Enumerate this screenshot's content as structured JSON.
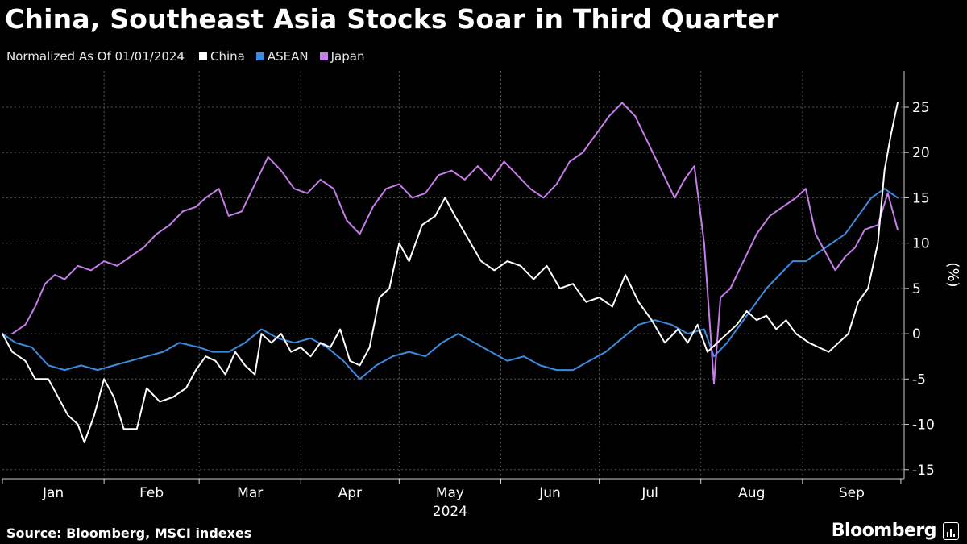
{
  "header": {
    "title": "China, Southeast Asia Stocks Soar in Third Quarter",
    "subtitle": "Normalized As Of 01/01/2024"
  },
  "footer": {
    "source": "Source: Bloomberg, MSCI indexes",
    "brand": "Bloomberg"
  },
  "chart_data": {
    "type": "line",
    "title": "China, Southeast Asia Stocks Soar in Third Quarter",
    "subtitle": "Normalized As Of 01/01/2024",
    "xlabel": "2024",
    "ylabel": "(%)",
    "ylim": [
      -16,
      29
    ],
    "yticks": [
      25,
      20,
      15,
      10,
      5,
      0,
      -5,
      -10,
      -15
    ],
    "ytick_labels": [
      "25",
      "20",
      "15",
      "10",
      "5",
      "0",
      "-5",
      "-10",
      "-15"
    ],
    "xlim": [
      "2024-01-01",
      "2024-10-02"
    ],
    "months": [
      "Jan",
      "Feb",
      "Mar",
      "Apr",
      "May",
      "Jun",
      "Jul",
      "Aug",
      "Sep"
    ],
    "year_label": "2024",
    "grid": true,
    "legend_position": "top-left",
    "series": [
      {
        "name": "China",
        "color": "#ffffff",
        "points": [
          [
            "2024-01-01",
            0
          ],
          [
            "2024-01-04",
            -2
          ],
          [
            "2024-01-08",
            -3
          ],
          [
            "2024-01-11",
            -5
          ],
          [
            "2024-01-15",
            -5
          ],
          [
            "2024-01-18",
            -7
          ],
          [
            "2024-01-21",
            -9
          ],
          [
            "2024-01-24",
            -10
          ],
          [
            "2024-01-26",
            -12
          ],
          [
            "2024-01-29",
            -9
          ],
          [
            "2024-02-01",
            -5
          ],
          [
            "2024-02-04",
            -7
          ],
          [
            "2024-02-07",
            -10.5
          ],
          [
            "2024-02-11",
            -10.5
          ],
          [
            "2024-02-14",
            -6
          ],
          [
            "2024-02-18",
            -7.5
          ],
          [
            "2024-02-22",
            -7
          ],
          [
            "2024-02-26",
            -6
          ],
          [
            "2024-02-29",
            -4
          ],
          [
            "2024-03-03",
            -2.5
          ],
          [
            "2024-03-06",
            -3
          ],
          [
            "2024-03-09",
            -4.5
          ],
          [
            "2024-03-12",
            -2
          ],
          [
            "2024-03-15",
            -3.5
          ],
          [
            "2024-03-18",
            -4.5
          ],
          [
            "2024-03-20",
            0
          ],
          [
            "2024-03-23",
            -1
          ],
          [
            "2024-03-26",
            0
          ],
          [
            "2024-03-29",
            -2
          ],
          [
            "2024-04-01",
            -1.5
          ],
          [
            "2024-04-04",
            -2.5
          ],
          [
            "2024-04-07",
            -1
          ],
          [
            "2024-04-10",
            -1.5
          ],
          [
            "2024-04-13",
            0.5
          ],
          [
            "2024-04-16",
            -3
          ],
          [
            "2024-04-19",
            -3.5
          ],
          [
            "2024-04-22",
            -1.5
          ],
          [
            "2024-04-25",
            4
          ],
          [
            "2024-04-28",
            5
          ],
          [
            "2024-05-01",
            10
          ],
          [
            "2024-05-04",
            8
          ],
          [
            "2024-05-08",
            12
          ],
          [
            "2024-05-12",
            13
          ],
          [
            "2024-05-15",
            15
          ],
          [
            "2024-05-18",
            13
          ],
          [
            "2024-05-22",
            10.5
          ],
          [
            "2024-05-26",
            8
          ],
          [
            "2024-05-30",
            7
          ],
          [
            "2024-06-03",
            8
          ],
          [
            "2024-06-07",
            7.5
          ],
          [
            "2024-06-11",
            6
          ],
          [
            "2024-06-15",
            7.5
          ],
          [
            "2024-06-19",
            5
          ],
          [
            "2024-06-23",
            5.5
          ],
          [
            "2024-06-27",
            3.5
          ],
          [
            "2024-07-01",
            4
          ],
          [
            "2024-07-05",
            3
          ],
          [
            "2024-07-09",
            6.5
          ],
          [
            "2024-07-13",
            3.5
          ],
          [
            "2024-07-17",
            1.5
          ],
          [
            "2024-07-21",
            -1
          ],
          [
            "2024-07-25",
            0.5
          ],
          [
            "2024-07-28",
            -1
          ],
          [
            "2024-07-31",
            1
          ],
          [
            "2024-08-03",
            -2
          ],
          [
            "2024-08-06",
            -1
          ],
          [
            "2024-08-09",
            0
          ],
          [
            "2024-08-12",
            1
          ],
          [
            "2024-08-15",
            2.5
          ],
          [
            "2024-08-18",
            1.5
          ],
          [
            "2024-08-21",
            2
          ],
          [
            "2024-08-24",
            0.5
          ],
          [
            "2024-08-27",
            1.5
          ],
          [
            "2024-08-30",
            0
          ],
          [
            "2024-09-03",
            -1
          ],
          [
            "2024-09-06",
            -1.5
          ],
          [
            "2024-09-09",
            -2
          ],
          [
            "2024-09-12",
            -1
          ],
          [
            "2024-09-15",
            0
          ],
          [
            "2024-09-18",
            3.5
          ],
          [
            "2024-09-21",
            5
          ],
          [
            "2024-09-24",
            10
          ],
          [
            "2024-09-26",
            18
          ],
          [
            "2024-09-28",
            22
          ],
          [
            "2024-09-30",
            25.5
          ]
        ]
      },
      {
        "name": "ASEAN",
        "color": "#3b8be0",
        "points": [
          [
            "2024-01-01",
            0
          ],
          [
            "2024-01-05",
            -1
          ],
          [
            "2024-01-10",
            -1.5
          ],
          [
            "2024-01-15",
            -3.5
          ],
          [
            "2024-01-20",
            -4
          ],
          [
            "2024-01-25",
            -3.5
          ],
          [
            "2024-01-30",
            -4
          ],
          [
            "2024-02-04",
            -3.5
          ],
          [
            "2024-02-09",
            -3
          ],
          [
            "2024-02-14",
            -2.5
          ],
          [
            "2024-02-19",
            -2
          ],
          [
            "2024-02-24",
            -1
          ],
          [
            "2024-03-01",
            -1.5
          ],
          [
            "2024-03-05",
            -2
          ],
          [
            "2024-03-10",
            -2
          ],
          [
            "2024-03-15",
            -1
          ],
          [
            "2024-03-20",
            0.5
          ],
          [
            "2024-03-25",
            -0.5
          ],
          [
            "2024-03-30",
            -1
          ],
          [
            "2024-04-04",
            -0.5
          ],
          [
            "2024-04-09",
            -1.5
          ],
          [
            "2024-04-14",
            -3
          ],
          [
            "2024-04-19",
            -5
          ],
          [
            "2024-04-24",
            -3.5
          ],
          [
            "2024-04-29",
            -2.5
          ],
          [
            "2024-05-04",
            -2
          ],
          [
            "2024-05-09",
            -2.5
          ],
          [
            "2024-05-14",
            -1
          ],
          [
            "2024-05-19",
            0
          ],
          [
            "2024-05-24",
            -1
          ],
          [
            "2024-05-29",
            -2
          ],
          [
            "2024-06-03",
            -3
          ],
          [
            "2024-06-08",
            -2.5
          ],
          [
            "2024-06-13",
            -3.5
          ],
          [
            "2024-06-18",
            -4
          ],
          [
            "2024-06-23",
            -4
          ],
          [
            "2024-06-28",
            -3
          ],
          [
            "2024-07-03",
            -2
          ],
          [
            "2024-07-08",
            -0.5
          ],
          [
            "2024-07-13",
            1
          ],
          [
            "2024-07-18",
            1.5
          ],
          [
            "2024-07-23",
            1
          ],
          [
            "2024-07-28",
            0
          ],
          [
            "2024-08-02",
            0.5
          ],
          [
            "2024-08-05",
            -2.5
          ],
          [
            "2024-08-09",
            -1
          ],
          [
            "2024-08-13",
            1
          ],
          [
            "2024-08-17",
            3
          ],
          [
            "2024-08-21",
            5
          ],
          [
            "2024-08-25",
            6.5
          ],
          [
            "2024-08-29",
            8
          ],
          [
            "2024-09-02",
            8
          ],
          [
            "2024-09-06",
            9
          ],
          [
            "2024-09-10",
            10
          ],
          [
            "2024-09-14",
            11
          ],
          [
            "2024-09-18",
            13
          ],
          [
            "2024-09-22",
            15
          ],
          [
            "2024-09-26",
            16
          ],
          [
            "2024-09-30",
            15
          ]
        ]
      },
      {
        "name": "Japan",
        "color": "#c77dea",
        "points": [
          [
            "2024-01-04",
            0
          ],
          [
            "2024-01-08",
            1
          ],
          [
            "2024-01-11",
            3
          ],
          [
            "2024-01-14",
            5.5
          ],
          [
            "2024-01-17",
            6.5
          ],
          [
            "2024-01-20",
            6
          ],
          [
            "2024-01-24",
            7.5
          ],
          [
            "2024-01-28",
            7
          ],
          [
            "2024-02-01",
            8
          ],
          [
            "2024-02-05",
            7.5
          ],
          [
            "2024-02-09",
            8.5
          ],
          [
            "2024-02-13",
            9.5
          ],
          [
            "2024-02-17",
            11
          ],
          [
            "2024-02-21",
            12
          ],
          [
            "2024-02-25",
            13.5
          ],
          [
            "2024-02-29",
            14
          ],
          [
            "2024-03-03",
            15
          ],
          [
            "2024-03-07",
            16
          ],
          [
            "2024-03-10",
            13
          ],
          [
            "2024-03-14",
            13.5
          ],
          [
            "2024-03-18",
            16.5
          ],
          [
            "2024-03-22",
            19.5
          ],
          [
            "2024-03-26",
            18
          ],
          [
            "2024-03-30",
            16
          ],
          [
            "2024-04-03",
            15.5
          ],
          [
            "2024-04-07",
            17
          ],
          [
            "2024-04-11",
            16
          ],
          [
            "2024-04-15",
            12.5
          ],
          [
            "2024-04-19",
            11
          ],
          [
            "2024-04-23",
            14
          ],
          [
            "2024-04-27",
            16
          ],
          [
            "2024-05-01",
            16.5
          ],
          [
            "2024-05-05",
            15
          ],
          [
            "2024-05-09",
            15.5
          ],
          [
            "2024-05-13",
            17.5
          ],
          [
            "2024-05-17",
            18
          ],
          [
            "2024-05-21",
            17
          ],
          [
            "2024-05-25",
            18.5
          ],
          [
            "2024-05-29",
            17
          ],
          [
            "2024-06-02",
            19
          ],
          [
            "2024-06-06",
            17.5
          ],
          [
            "2024-06-10",
            16
          ],
          [
            "2024-06-14",
            15
          ],
          [
            "2024-06-18",
            16.5
          ],
          [
            "2024-06-22",
            19
          ],
          [
            "2024-06-26",
            20
          ],
          [
            "2024-06-30",
            22
          ],
          [
            "2024-07-04",
            24
          ],
          [
            "2024-07-08",
            25.5
          ],
          [
            "2024-07-12",
            24
          ],
          [
            "2024-07-16",
            21
          ],
          [
            "2024-07-20",
            18
          ],
          [
            "2024-07-24",
            15
          ],
          [
            "2024-07-27",
            17
          ],
          [
            "2024-07-30",
            18.5
          ],
          [
            "2024-08-02",
            10
          ],
          [
            "2024-08-05",
            -5.5
          ],
          [
            "2024-08-07",
            4
          ],
          [
            "2024-08-10",
            5
          ],
          [
            "2024-08-14",
            8
          ],
          [
            "2024-08-18",
            11
          ],
          [
            "2024-08-22",
            13
          ],
          [
            "2024-08-26",
            14
          ],
          [
            "2024-08-30",
            15
          ],
          [
            "2024-09-02",
            16
          ],
          [
            "2024-09-05",
            11
          ],
          [
            "2024-09-08",
            9
          ],
          [
            "2024-09-11",
            7
          ],
          [
            "2024-09-14",
            8.5
          ],
          [
            "2024-09-17",
            9.5
          ],
          [
            "2024-09-20",
            11.5
          ],
          [
            "2024-09-24",
            12
          ],
          [
            "2024-09-27",
            15.5
          ],
          [
            "2024-09-30",
            11.5
          ]
        ]
      }
    ]
  }
}
